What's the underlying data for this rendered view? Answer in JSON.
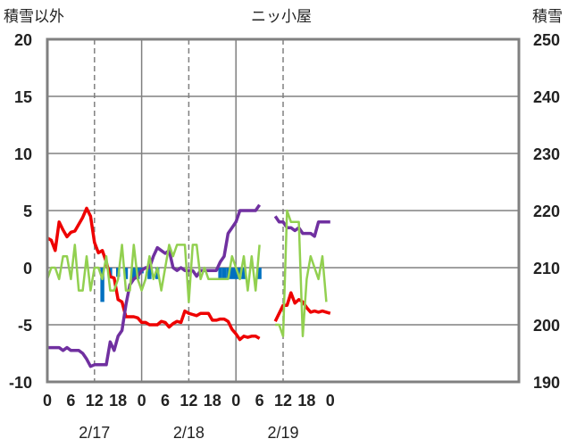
{
  "chart_data": {
    "type": "line",
    "title": "ニッ小屋",
    "ylabel_left": "積雪以外",
    "ylabel_right": "積雪",
    "left_axis": {
      "min": -10,
      "max": 20,
      "ticks": [
        "20",
        "15",
        "10",
        "5",
        "0",
        "-5",
        "-10"
      ]
    },
    "right_axis": {
      "min": 190,
      "max": 250,
      "ticks": [
        "250",
        "240",
        "230",
        "220",
        "210",
        "200",
        "190"
      ]
    },
    "x_range": [
      0,
      60
    ],
    "x_ticks": [
      {
        "x": 0,
        "label": "0"
      },
      {
        "x": 3,
        "label": "6"
      },
      {
        "x": 6,
        "label": "12"
      },
      {
        "x": 9,
        "label": "18"
      },
      {
        "x": 12,
        "label": "0"
      },
      {
        "x": 15,
        "label": "6"
      },
      {
        "x": 18,
        "label": "12"
      },
      {
        "x": 21,
        "label": "18"
      },
      {
        "x": 24,
        "label": "0"
      },
      {
        "x": 27,
        "label": "6"
      },
      {
        "x": 30,
        "label": "12"
      },
      {
        "x": 33,
        "label": "18"
      },
      {
        "x": 36,
        "label": "0"
      }
    ],
    "date_labels": [
      {
        "x": 6,
        "label": "2/17"
      },
      {
        "x": 18,
        "label": "2/18"
      },
      {
        "x": 30,
        "label": "2/19"
      }
    ],
    "x_grid_solid": [
      12,
      24
    ],
    "x_grid_dashed": [
      6,
      18,
      30
    ],
    "y_grid_left": [
      15,
      10,
      5,
      0,
      -5
    ],
    "series": [
      {
        "name": "red",
        "color": "#ee0000",
        "axis": "left",
        "points": [
          [
            0,
            2.6
          ],
          [
            0.5,
            2.4
          ],
          [
            1,
            1.5
          ],
          [
            1.5,
            4
          ],
          [
            2,
            3.3
          ],
          [
            2.5,
            2.7
          ],
          [
            3,
            3.1
          ],
          [
            3.5,
            3.2
          ],
          [
            4,
            3.8
          ],
          [
            4.5,
            4.4
          ],
          [
            5,
            5.2
          ],
          [
            5.5,
            4.5
          ],
          [
            6,
            2.2
          ],
          [
            6.5,
            1.3
          ],
          [
            7,
            1.5
          ],
          [
            7.5,
            0.5
          ],
          [
            8,
            -0.8
          ],
          [
            8.5,
            -0.9
          ],
          [
            9,
            -2.8
          ],
          [
            9.5,
            -3
          ],
          [
            10,
            -4.3
          ],
          [
            10.5,
            -4.3
          ],
          [
            11,
            -4.3
          ],
          [
            11.5,
            -4.4
          ],
          [
            12,
            -4.8
          ],
          [
            12.5,
            -4.8
          ],
          [
            13,
            -5
          ],
          [
            13.5,
            -5
          ],
          [
            14,
            -5
          ],
          [
            14.5,
            -4.7
          ],
          [
            15,
            -4.8
          ],
          [
            15.5,
            -5.2
          ],
          [
            16,
            -4.9
          ],
          [
            16.5,
            -4.7
          ],
          [
            17,
            -4.8
          ],
          [
            17.5,
            -3.8
          ],
          [
            18,
            -4
          ],
          [
            18.5,
            -4.1
          ],
          [
            19,
            -4.2
          ],
          [
            19.5,
            -4
          ],
          [
            20,
            -4
          ],
          [
            20.5,
            -4
          ],
          [
            21,
            -4.6
          ],
          [
            21.5,
            -4.6
          ],
          [
            22,
            -4.5
          ],
          [
            22.5,
            -4.5
          ],
          [
            23,
            -4.7
          ],
          [
            23.5,
            -5.4
          ],
          [
            24,
            -5.8
          ],
          [
            24.5,
            -6.3
          ],
          [
            25,
            -6
          ],
          [
            25.5,
            -6.1
          ],
          [
            26,
            -6
          ],
          [
            26.5,
            -6
          ],
          [
            27,
            -6.2
          ],
          null,
          [
            29,
            -4.7
          ],
          [
            29.5,
            -4
          ],
          [
            30,
            -3.3
          ],
          [
            30.5,
            -3.3
          ],
          [
            31,
            -2.2
          ],
          [
            31.5,
            -3.1
          ],
          [
            32,
            -2.8
          ],
          [
            32.5,
            -3
          ],
          [
            33,
            -3.5
          ],
          [
            33.5,
            -3.9
          ],
          [
            34,
            -3.8
          ],
          [
            34.5,
            -3.9
          ],
          [
            35,
            -3.8
          ],
          [
            35.5,
            -3.9
          ],
          [
            36,
            -4
          ]
        ]
      },
      {
        "name": "purple",
        "color": "#7030a0",
        "axis": "right",
        "points": [
          [
            0,
            196
          ],
          [
            0.5,
            196
          ],
          [
            1,
            196
          ],
          [
            1.5,
            196
          ],
          [
            2,
            195.5
          ],
          [
            2.5,
            196
          ],
          [
            3,
            195.5
          ],
          [
            3.5,
            195.5
          ],
          [
            4,
            195.5
          ],
          [
            4.5,
            195
          ],
          [
            5,
            194
          ],
          [
            5.5,
            192.7
          ],
          [
            6,
            193
          ],
          [
            6.5,
            193
          ],
          [
            7,
            193
          ],
          [
            7.5,
            193
          ],
          [
            8,
            197
          ],
          [
            8.5,
            195.5
          ],
          [
            9,
            198
          ],
          [
            9.5,
            199
          ],
          [
            10,
            203.5
          ],
          [
            10.5,
            207
          ],
          [
            11,
            208
          ],
          [
            11.5,
            208.5
          ],
          [
            12,
            209.5
          ],
          [
            12.5,
            210
          ],
          [
            13,
            210
          ],
          [
            13.5,
            212
          ],
          [
            14,
            213.5
          ],
          [
            14.5,
            213
          ],
          [
            15,
            212.5
          ],
          [
            15.5,
            213
          ],
          [
            16,
            210
          ],
          [
            16.5,
            209.5
          ],
          [
            17,
            210
          ],
          [
            17.5,
            209.5
          ],
          [
            18,
            209.5
          ],
          [
            18.5,
            209.5
          ],
          [
            19,
            208.5
          ],
          [
            19.5,
            209.5
          ],
          [
            20,
            209.5
          ],
          [
            20.5,
            209.5
          ],
          [
            21,
            209.5
          ],
          [
            21.5,
            209.5
          ],
          [
            22,
            211
          ],
          [
            22.5,
            212
          ],
          [
            23,
            216
          ],
          [
            23.5,
            217
          ],
          [
            24,
            218
          ],
          [
            24.5,
            220
          ],
          [
            25,
            220
          ],
          [
            25.5,
            220
          ],
          [
            26,
            220
          ],
          [
            26.5,
            220
          ],
          [
            27,
            221
          ],
          null,
          [
            29,
            219
          ],
          [
            29.5,
            218
          ],
          [
            30,
            218
          ],
          [
            30.5,
            217
          ],
          [
            31,
            217
          ],
          [
            31.5,
            216.5
          ],
          [
            32,
            217
          ],
          [
            32.5,
            216
          ],
          [
            33,
            216
          ],
          [
            33.5,
            216
          ],
          [
            34,
            215.5
          ],
          [
            34.5,
            218
          ],
          [
            35,
            218
          ],
          [
            35.5,
            218
          ],
          [
            36,
            218
          ]
        ]
      },
      {
        "name": "green",
        "color": "#92d050",
        "axis": "left",
        "points": [
          [
            0,
            -1
          ],
          [
            0.5,
            0
          ],
          [
            1,
            0
          ],
          [
            1.5,
            -1
          ],
          [
            2,
            1
          ],
          [
            2.5,
            1
          ],
          [
            3,
            -1
          ],
          [
            3.5,
            2
          ],
          [
            4,
            -2
          ],
          [
            4.5,
            -2
          ],
          [
            5,
            1
          ],
          [
            5.5,
            -2
          ],
          [
            6,
            0
          ],
          [
            6.5,
            0
          ],
          [
            7,
            -1
          ],
          [
            7.5,
            1
          ],
          [
            8,
            -2
          ],
          [
            8.5,
            -2
          ],
          [
            9,
            -1
          ],
          [
            9.5,
            2
          ],
          [
            10,
            -2
          ],
          [
            10.5,
            -2
          ],
          [
            11,
            2
          ],
          [
            11.5,
            -1
          ],
          [
            12,
            -2
          ],
          [
            12.5,
            -1
          ],
          [
            13,
            1
          ],
          [
            13.5,
            -1
          ],
          [
            14,
            0
          ],
          [
            14.5,
            -2
          ],
          [
            15,
            0
          ],
          [
            15.5,
            2
          ],
          [
            16,
            1
          ],
          [
            16.5,
            2
          ],
          [
            17,
            2
          ],
          [
            17.5,
            2
          ],
          [
            18,
            -3
          ],
          [
            18.5,
            2
          ],
          [
            19,
            2
          ],
          [
            19.5,
            -1
          ],
          [
            20,
            0
          ],
          [
            20.5,
            -1
          ],
          [
            21,
            -1
          ],
          [
            21.5,
            -1
          ],
          [
            22,
            -1
          ],
          [
            22.5,
            -1
          ],
          [
            23,
            -1
          ],
          [
            23.5,
            1
          ],
          [
            24,
            0
          ],
          [
            24.5,
            -1
          ],
          [
            25,
            1
          ],
          [
            25.5,
            -2
          ],
          [
            26,
            1
          ],
          [
            26.5,
            -2
          ],
          [
            27,
            2
          ],
          null,
          [
            29,
            -5
          ],
          [
            29.5,
            -5
          ],
          [
            30,
            -6
          ],
          [
            30.5,
            5
          ],
          [
            31,
            4
          ],
          [
            31.5,
            4
          ],
          [
            32,
            4
          ],
          [
            32.5,
            -6
          ],
          [
            33,
            -1
          ],
          [
            33.5,
            1
          ],
          [
            34,
            0
          ],
          [
            34.5,
            -1
          ],
          [
            35,
            1
          ],
          [
            35.5,
            -3
          ]
        ]
      }
    ],
    "bars": {
      "name": "blue",
      "color": "#0070c0",
      "axis": "left",
      "width": 0.5,
      "values": [
        [
          7,
          -3
        ],
        [
          8,
          -0.8
        ],
        [
          9,
          -0.8
        ],
        [
          10,
          -1
        ],
        [
          11,
          -1
        ],
        [
          11.5,
          -1
        ],
        [
          12,
          -0.5
        ],
        [
          13,
          -1
        ],
        [
          14,
          -1
        ],
        [
          22,
          -1
        ],
        [
          22.5,
          -1
        ],
        [
          23,
          -1
        ],
        [
          23.5,
          -1
        ],
        [
          24,
          -1
        ],
        [
          24.5,
          -1
        ],
        [
          25,
          -1
        ],
        [
          27,
          -1
        ]
      ]
    }
  }
}
